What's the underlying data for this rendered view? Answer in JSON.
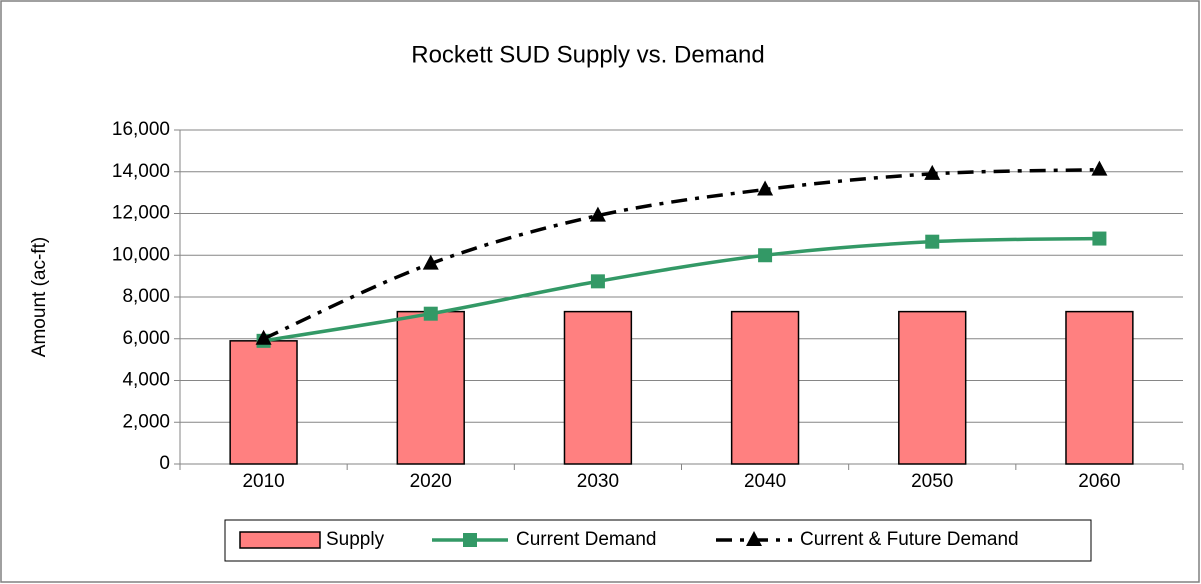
{
  "chart_data": {
    "type": "combo",
    "title": "Rockett SUD Supply vs. Demand",
    "y_label": "Amount (ac-ft)",
    "categories": [
      "2010",
      "2020",
      "2030",
      "2040",
      "2050",
      "2060"
    ],
    "series": [
      {
        "name": "Supply",
        "type": "bar",
        "color": "#ff8080",
        "values": [
          5900,
          7300,
          7300,
          7300,
          7300,
          7300
        ]
      },
      {
        "name": "Current Demand",
        "type": "line",
        "color": "#339966",
        "marker": "square",
        "dash": "solid",
        "values": [
          5900,
          7200,
          8750,
          10000,
          10650,
          10800
        ]
      },
      {
        "name": "Current & Future Demand",
        "type": "line",
        "color": "#000000",
        "marker": "triangle",
        "dash": "dashdot",
        "values": [
          6000,
          9600,
          11900,
          13150,
          13900,
          14100
        ]
      }
    ],
    "ylim": [
      0,
      16000
    ],
    "yticks": [
      0,
      {
        "value": 2000,
        "label": "2,000"
      },
      {
        "value": 4000,
        "label": "4,000"
      },
      {
        "value": 6000,
        "label": "6,000"
      },
      {
        "value": 8000,
        "label": "8,000"
      },
      {
        "value": 10000,
        "label": "10,000"
      },
      {
        "value": 12000,
        "label": "12,000"
      },
      {
        "value": 14000,
        "label": "14,000"
      },
      {
        "value": 16000,
        "label": "16,000"
      }
    ],
    "grid": true,
    "legend": "bottom"
  }
}
